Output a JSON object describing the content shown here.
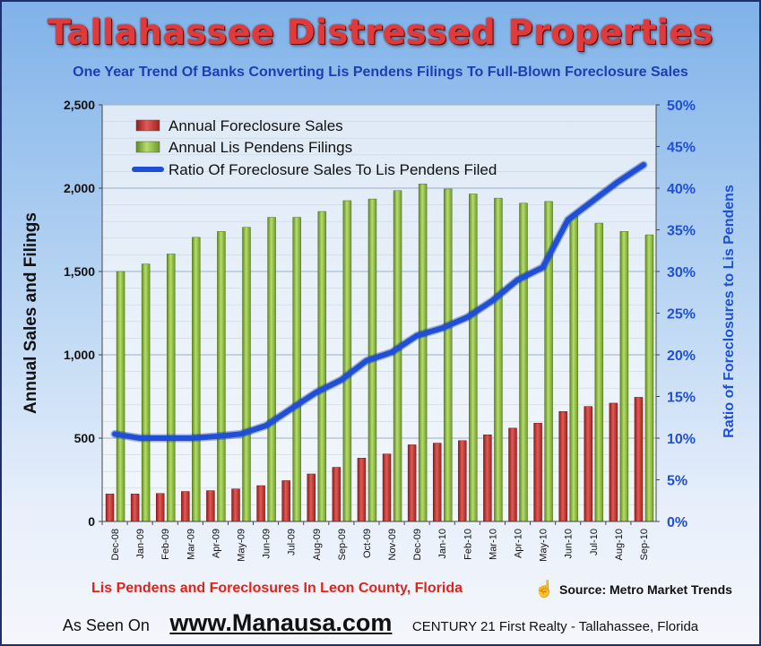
{
  "page": {
    "title": "Tallahassee Distressed Properties",
    "subtitle": "One Year Trend Of Banks Converting Lis Pendens Filings To Full-Blown Foreclosure Sales",
    "caption": "Lis Pendens and Foreclosures In Leon County, Florida",
    "source": "Source: Metro Market Trends",
    "as_seen_on": "As Seen On",
    "website": "www.Manausa.com",
    "realty": "CENTURY 21 First Realty - Tallahassee, Florida",
    "icons": {
      "pointer": "pointing-hand-icon"
    }
  },
  "chart_data": {
    "type": "bar",
    "categories": [
      "Dec-08",
      "Jan-09",
      "Feb-09",
      "Mar-09",
      "Apr-09",
      "May-09",
      "Jun-09",
      "Jul-09",
      "Aug-09",
      "Sep-09",
      "Oct-09",
      "Nov-09",
      "Dec-09",
      "Jan-10",
      "Feb-10",
      "Mar-10",
      "Apr-10",
      "May-10",
      "Jun-10",
      "Jul-10",
      "Aug-10",
      "Sep-10"
    ],
    "series": [
      {
        "name": "Annual Foreclosure Sales",
        "type": "bar",
        "axis": "left",
        "color": "#c8302c",
        "values": [
          165,
          165,
          168,
          180,
          185,
          195,
          215,
          245,
          285,
          325,
          380,
          405,
          460,
          470,
          485,
          520,
          560,
          590,
          660,
          690,
          710,
          745
        ]
      },
      {
        "name": "Annual Lis Pendens Filings",
        "type": "bar",
        "axis": "left",
        "color": "#8ab83a",
        "values": [
          1500,
          1545,
          1605,
          1705,
          1740,
          1765,
          1825,
          1825,
          1860,
          1925,
          1935,
          1985,
          2025,
          1995,
          1965,
          1940,
          1910,
          1920,
          1830,
          1790,
          1740,
          1720
        ]
      },
      {
        "name": "Ratio Of Foreclosure Sales To Lis Pendens Filed",
        "type": "line",
        "axis": "right",
        "color": "#1f4fd6",
        "values": [
          10.5,
          10.0,
          10.0,
          10.0,
          10.2,
          10.5,
          11.5,
          13.5,
          15.5,
          17.0,
          19.3,
          20.3,
          22.3,
          23.2,
          24.5,
          26.5,
          29.0,
          30.5,
          36.2,
          38.5,
          40.8,
          42.8
        ]
      }
    ],
    "ylabel": "Annual Sales and Filings",
    "y2label": "Ratio of Foreclosures to Lis Pendens",
    "ylim": [
      0,
      2500
    ],
    "y2lim": [
      0,
      50
    ],
    "yticks": [
      "0",
      "500",
      "1,000",
      "1,500",
      "2,000",
      "2,500"
    ],
    "y2ticks": [
      "0%",
      "5%",
      "10%",
      "15%",
      "20%",
      "25%",
      "30%",
      "35%",
      "40%",
      "45%",
      "50%"
    ],
    "grid": true,
    "legend_position": "top-left"
  }
}
